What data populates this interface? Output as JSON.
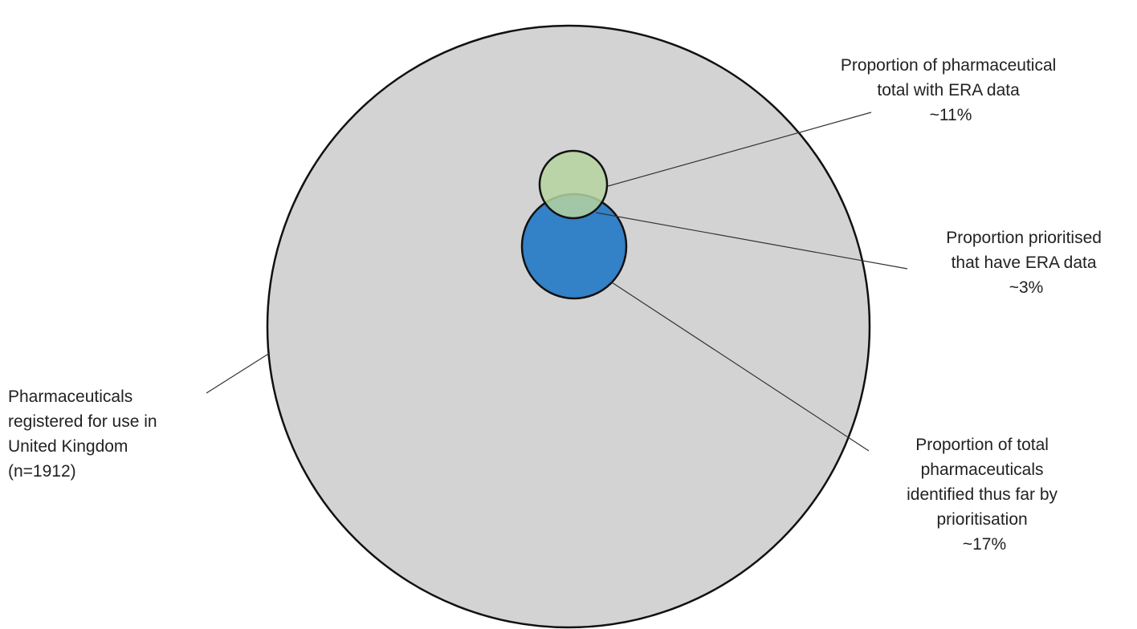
{
  "diagram": {
    "total": {
      "label_lines": [
        "Pharmaceuticals",
        "registered for use in",
        "United Kingdom",
        "(n=1912)"
      ],
      "fill": "#d3d3d3"
    },
    "era_data": {
      "label_lines": [
        "Proportion of pharmaceutical",
        "total with ERA data",
        "~11%"
      ],
      "fill": "#b5d3a0"
    },
    "prioritised": {
      "label_lines": [
        "Proportion of total",
        "pharmaceuticals",
        "identified thus far by",
        "prioritisation",
        "~17%"
      ],
      "fill": "#3381c6"
    },
    "overlap": {
      "label_lines": [
        "Proportion prioritised",
        "that have ERA data",
        "~3%"
      ],
      "fill": "#5aa3a0"
    },
    "outline_color": "#111111"
  }
}
